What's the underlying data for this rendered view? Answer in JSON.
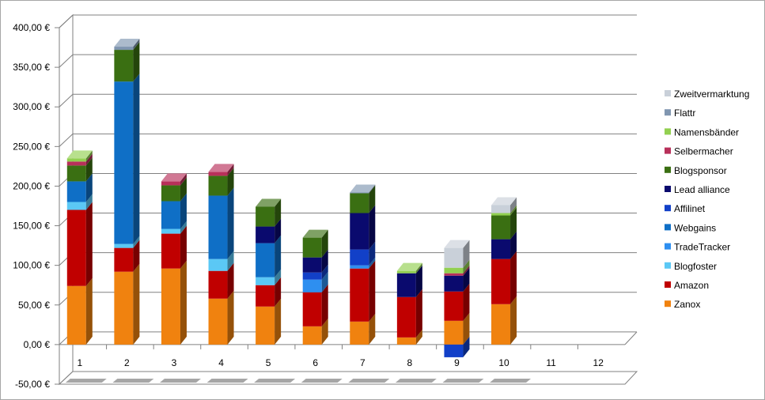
{
  "chart_data": {
    "type": "bar",
    "stacked": true,
    "three_d": true,
    "title": "",
    "xlabel": "",
    "ylabel": "",
    "ylim": [
      -50,
      400
    ],
    "yticks": [
      -50,
      0,
      50,
      100,
      150,
      200,
      250,
      300,
      350,
      400
    ],
    "ytick_labels": [
      "-50,00 €",
      "0,00 €",
      "50,00 €",
      "100,00 €",
      "150,00 €",
      "200,00 €",
      "250,00 €",
      "300,00 €",
      "350,00 €",
      "400,00 €"
    ],
    "categories": [
      "1",
      "2",
      "3",
      "4",
      "5",
      "6",
      "7",
      "8",
      "9",
      "10",
      "11",
      "12"
    ],
    "grid": true,
    "legend_position": "right",
    "series": [
      {
        "name": "Zanox",
        "color": "#f0820f",
        "values": [
          74,
          92,
          96,
          58,
          48,
          23,
          29,
          9,
          30,
          51,
          0,
          0
        ]
      },
      {
        "name": "Amazon",
        "color": "#c00000",
        "values": [
          96,
          30,
          44,
          35,
          27,
          43,
          67,
          51,
          37,
          57,
          0,
          0
        ]
      },
      {
        "name": "Blogfoster",
        "color": "#5bc8f5",
        "values": [
          10,
          5,
          6,
          15,
          10,
          0,
          0,
          0,
          0,
          0,
          0,
          0
        ]
      },
      {
        "name": "TradeTracker",
        "color": "#2e8ff0",
        "values": [
          0,
          0,
          0,
          0,
          0,
          16,
          4,
          0,
          0,
          0,
          0,
          0
        ]
      },
      {
        "name": "Webgains",
        "color": "#0f6fc6",
        "values": [
          26,
          205,
          35,
          80,
          43,
          0,
          0,
          0,
          0,
          0,
          0,
          0
        ]
      },
      {
        "name": "Affilinet",
        "color": "#1240c8",
        "values": [
          0,
          0,
          0,
          0,
          0,
          9,
          20,
          0,
          -16,
          0,
          0,
          0
        ]
      },
      {
        "name": "Lead alliance",
        "color": "#0a0a6e",
        "values": [
          0,
          0,
          0,
          0,
          21,
          19,
          46,
          30,
          20,
          25,
          0,
          0
        ]
      },
      {
        "name": "Blogsponsor",
        "color": "#3a6f12",
        "values": [
          20,
          40,
          20,
          25,
          25,
          25,
          25,
          0,
          0,
          30,
          0,
          0
        ]
      },
      {
        "name": "Selbermacher",
        "color": "#b8305a",
        "values": [
          5,
          0,
          5,
          5,
          0,
          0,
          0,
          0,
          3,
          0,
          0,
          0
        ]
      },
      {
        "name": "Namensbänder",
        "color": "#92d050",
        "values": [
          4,
          0,
          0,
          0,
          0,
          0,
          0,
          3,
          7,
          3,
          0,
          0
        ]
      },
      {
        "name": "Flattr",
        "color": "#8096b0",
        "values": [
          0,
          4,
          0,
          0,
          0,
          0,
          1,
          0,
          0,
          0,
          0,
          0
        ]
      },
      {
        "name": "Zweitvermarktung",
        "color": "#c9d0d9",
        "values": [
          0,
          0,
          0,
          0,
          0,
          0,
          0,
          0,
          25,
          10,
          0,
          0
        ]
      }
    ],
    "pink_segments": {
      "name": "Selbermacher",
      "note": ""
    }
  }
}
